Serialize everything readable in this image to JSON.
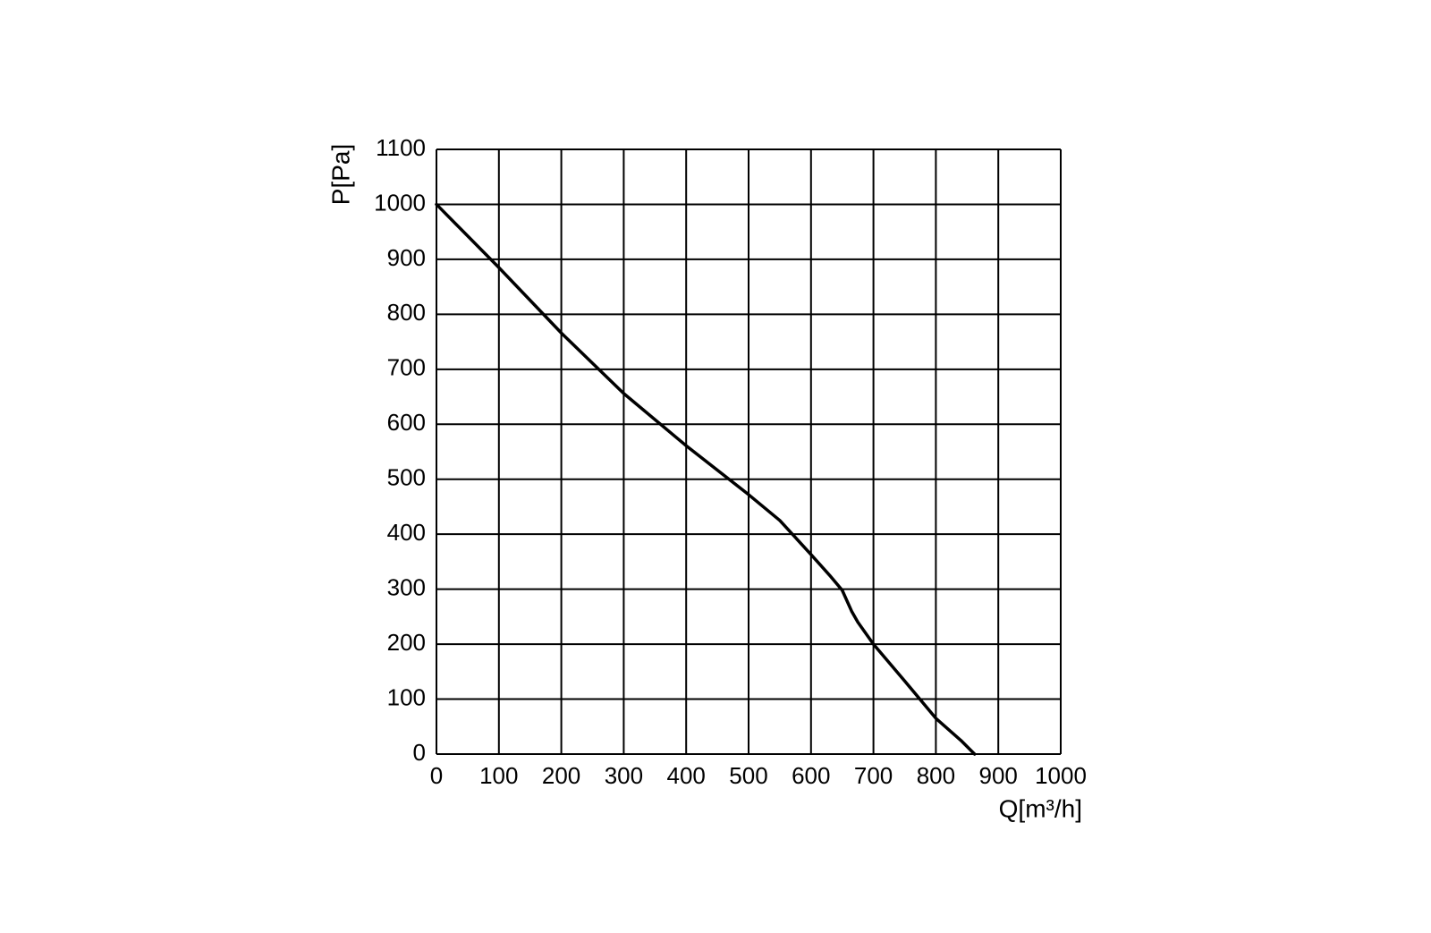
{
  "chart_data": {
    "type": "line",
    "x_label": "Q[m³/h]",
    "y_label": "P[Pa]",
    "series": [
      {
        "color": "#000000",
        "x": [
          0,
          100,
          200,
          300,
          400,
          500,
          550,
          600,
          630,
          650,
          665,
          675,
          700,
          750,
          800,
          840,
          862
        ],
        "values": [
          1000,
          885,
          766,
          656,
          561,
          472,
          425,
          363,
          325,
          298,
          260,
          240,
          200,
          133,
          65,
          25,
          0
        ]
      }
    ],
    "xlim": [
      0,
      1000
    ],
    "ylim": [
      0,
      1100
    ],
    "xticks": [
      0,
      100,
      200,
      300,
      400,
      500,
      600,
      700,
      800,
      900,
      1000
    ],
    "yticks": [
      0,
      100,
      200,
      300,
      400,
      500,
      600,
      700,
      800,
      900,
      1000,
      1100
    ],
    "grid": true
  }
}
